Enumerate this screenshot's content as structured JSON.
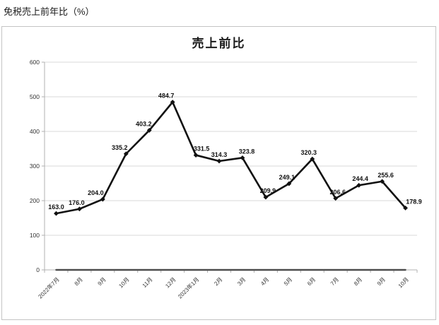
{
  "page": {
    "heading": "免税売上前年比（%）"
  },
  "chart_data": {
    "type": "line",
    "title": "売上前比",
    "categories": [
      "2022年7月",
      "8月",
      "9月",
      "10月",
      "11月",
      "12月",
      "2023年1月",
      "2月",
      "3月",
      "4月",
      "5月",
      "6月",
      "7月",
      "8月",
      "9月",
      "10月"
    ],
    "series": [
      {
        "name": "売上前比",
        "values": [
          163.0,
          176.0,
          204.0,
          335.2,
          403.2,
          484.7,
          331.5,
          314.3,
          323.8,
          209.9,
          249.1,
          320.3,
          206.6,
          244.4,
          255.6,
          178.9
        ],
        "labels": [
          "163.0",
          "176.0",
          "204.0",
          "335.2",
          "403.2",
          "484.7",
          "331.5",
          "314.3",
          "323.8",
          "209.9",
          "249.1",
          "320.3",
          "206.6",
          "244.4",
          "255.6",
          "178.9"
        ],
        "color": "#111111",
        "show_markers": true,
        "show_labels": true,
        "line_width": 2.6
      },
      {
        "name": "",
        "values": [
          0,
          0,
          0,
          0,
          0,
          0,
          0,
          0,
          0,
          0,
          0,
          0,
          0,
          0,
          0,
          0
        ],
        "labels": [],
        "color": "#4d4d4d",
        "show_markers": false,
        "show_labels": false,
        "line_width": 2.4
      }
    ],
    "ylim": [
      0,
      600
    ],
    "ytick_step": 100,
    "ytick_labels": [
      "0",
      "100",
      "200",
      "300",
      "400",
      "500",
      "600"
    ],
    "grid": true,
    "legend": "none",
    "colors": {
      "gridline": "#d9d9d9",
      "axis": "#b0b0b0",
      "frame_border": "#c4c4c4",
      "text": "#333333"
    }
  }
}
